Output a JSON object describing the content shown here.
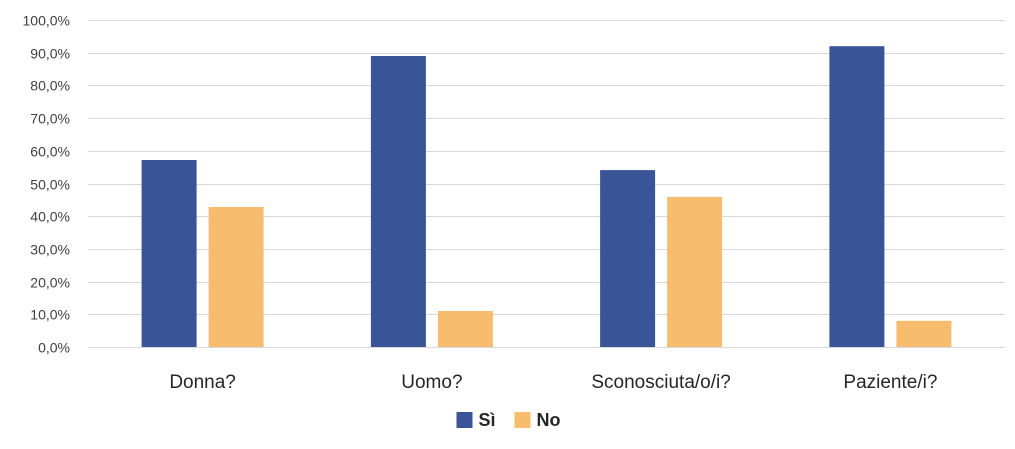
{
  "chart_data": {
    "type": "bar",
    "categories": [
      "Donna?",
      "Uomo?",
      "Sconosciuta/o/i?",
      "Paziente/i?"
    ],
    "series": [
      {
        "name": "Sì",
        "values": [
          57.2,
          89.0,
          54.1,
          92.0
        ],
        "color": "#3a5597"
      },
      {
        "name": "No",
        "values": [
          42.8,
          11.0,
          45.9,
          8.0
        ],
        "color": "#f8bc6e"
      }
    ],
    "ylim": [
      0,
      100
    ],
    "yticks": [
      0,
      10,
      20,
      30,
      40,
      50,
      60,
      70,
      80,
      90,
      100
    ],
    "ytick_labels": [
      "0,0%",
      "10,0%",
      "20,0%",
      "30,0%",
      "40,0%",
      "50,0%",
      "60,0%",
      "70,0%",
      "80,0%",
      "90,0%",
      "100,0%"
    ],
    "grid": true,
    "legend_position": "bottom-center"
  }
}
